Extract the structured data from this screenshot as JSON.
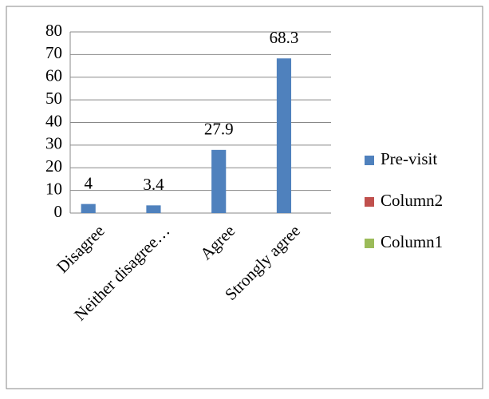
{
  "chart_data": {
    "type": "bar",
    "categories": [
      "Disagree",
      "Neither disagree…",
      "Agree",
      "Strongly agree"
    ],
    "series": [
      {
        "name": "Pre-visit",
        "color": "#4f81bd",
        "values": [
          4,
          3.4,
          27.9,
          68.3
        ]
      },
      {
        "name": "Column2",
        "color": "#c0504d",
        "values": [
          null,
          null,
          null,
          null
        ]
      },
      {
        "name": "Column1",
        "color": "#9bbb59",
        "values": [
          null,
          null,
          null,
          null
        ]
      }
    ],
    "ylim": [
      0,
      80
    ],
    "yticks": [
      0,
      10,
      20,
      30,
      40,
      50,
      60,
      70,
      80
    ],
    "grid": true,
    "legend": "right"
  }
}
